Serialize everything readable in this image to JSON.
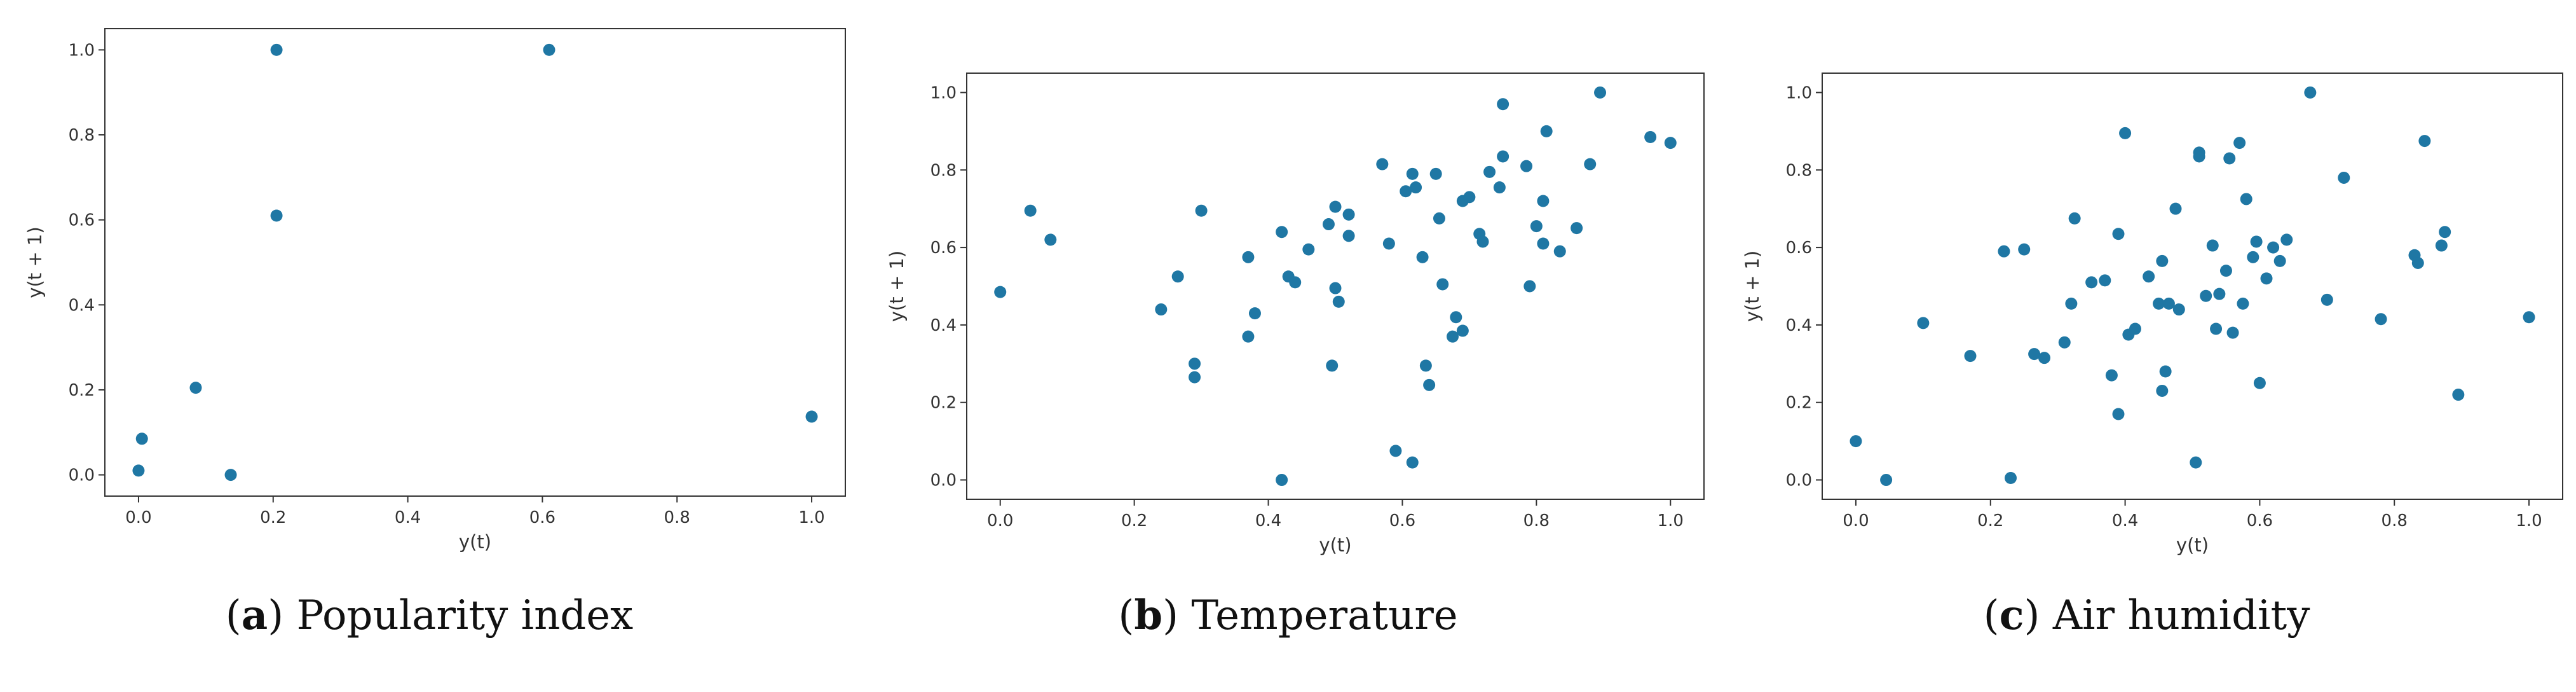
{
  "chart_data": [
    {
      "type": "scatter",
      "title": "",
      "xlabel": "y(t)",
      "ylabel": "y(t + 1)",
      "xlim": [
        -0.05,
        1.05
      ],
      "ylim": [
        -0.05,
        1.05
      ],
      "xticks": [
        "0.0",
        "0.2",
        "0.4",
        "0.6",
        "0.8",
        "1.0"
      ],
      "yticks": [
        "0.0",
        "0.2",
        "0.4",
        "0.6",
        "0.8",
        "1.0"
      ],
      "grid": false,
      "marker_color": "#1f77a4",
      "caption_letter": "a",
      "caption_text": "Popularity index",
      "points": [
        [
          0.0,
          0.01
        ],
        [
          0.005,
          0.085
        ],
        [
          0.085,
          0.205
        ],
        [
          0.137,
          0.0
        ],
        [
          0.205,
          1.0
        ],
        [
          0.205,
          0.61
        ],
        [
          0.61,
          1.0
        ],
        [
          1.0,
          0.137
        ]
      ]
    },
    {
      "type": "scatter",
      "title": "",
      "xlabel": "y(t)",
      "ylabel": "y(t + 1)",
      "xlim": [
        -0.05,
        1.05
      ],
      "ylim": [
        -0.05,
        1.05
      ],
      "xticks": [
        "0.0",
        "0.2",
        "0.4",
        "0.6",
        "0.8",
        "1.0"
      ],
      "yticks": [
        "0.0",
        "0.2",
        "0.4",
        "0.6",
        "0.8",
        "1.0"
      ],
      "grid": false,
      "marker_color": "#1f77a4",
      "caption_letter": "b",
      "caption_text": "Temperature",
      "points": [
        [
          0.0,
          0.485
        ],
        [
          0.045,
          0.695
        ],
        [
          0.075,
          0.62
        ],
        [
          0.24,
          0.44
        ],
        [
          0.265,
          0.525
        ],
        [
          0.29,
          0.265
        ],
        [
          0.29,
          0.3
        ],
        [
          0.3,
          0.695
        ],
        [
          0.37,
          0.37
        ],
        [
          0.37,
          0.575
        ],
        [
          0.38,
          0.43
        ],
        [
          0.42,
          0.0
        ],
        [
          0.42,
          0.64
        ],
        [
          0.43,
          0.525
        ],
        [
          0.44,
          0.51
        ],
        [
          0.46,
          0.595
        ],
        [
          0.49,
          0.66
        ],
        [
          0.495,
          0.295
        ],
        [
          0.5,
          0.495
        ],
        [
          0.5,
          0.705
        ],
        [
          0.505,
          0.46
        ],
        [
          0.52,
          0.685
        ],
        [
          0.52,
          0.63
        ],
        [
          0.57,
          0.815
        ],
        [
          0.58,
          0.61
        ],
        [
          0.59,
          0.075
        ],
        [
          0.605,
          0.745
        ],
        [
          0.615,
          0.79
        ],
        [
          0.615,
          0.045
        ],
        [
          0.62,
          0.755
        ],
        [
          0.63,
          0.575
        ],
        [
          0.635,
          0.295
        ],
        [
          0.64,
          0.245
        ],
        [
          0.65,
          0.79
        ],
        [
          0.655,
          0.675
        ],
        [
          0.66,
          0.505
        ],
        [
          0.675,
          0.37
        ],
        [
          0.68,
          0.42
        ],
        [
          0.69,
          0.72
        ],
        [
          0.69,
          0.385
        ],
        [
          0.7,
          0.73
        ],
        [
          0.715,
          0.635
        ],
        [
          0.72,
          0.615
        ],
        [
          0.73,
          0.795
        ],
        [
          0.745,
          0.755
        ],
        [
          0.75,
          0.97
        ],
        [
          0.75,
          0.835
        ],
        [
          0.785,
          0.81
        ],
        [
          0.79,
          0.5
        ],
        [
          0.8,
          0.655
        ],
        [
          0.81,
          0.72
        ],
        [
          0.81,
          0.61
        ],
        [
          0.815,
          0.9
        ],
        [
          0.835,
          0.59
        ],
        [
          0.86,
          0.65
        ],
        [
          0.88,
          0.815
        ],
        [
          0.895,
          1.0
        ],
        [
          0.97,
          0.885
        ],
        [
          1.0,
          0.87
        ]
      ]
    },
    {
      "type": "scatter",
      "title": "",
      "xlabel": "y(t)",
      "ylabel": "y(t + 1)",
      "xlim": [
        -0.05,
        1.05
      ],
      "ylim": [
        -0.05,
        1.05
      ],
      "xticks": [
        "0.0",
        "0.2",
        "0.4",
        "0.6",
        "0.8",
        "1.0"
      ],
      "yticks": [
        "0.0",
        "0.2",
        "0.4",
        "0.6",
        "0.8",
        "1.0"
      ],
      "grid": false,
      "marker_color": "#1f77a4",
      "caption_letter": "c",
      "caption_text": "Air humidity",
      "points": [
        [
          0.0,
          0.1
        ],
        [
          0.045,
          0.0
        ],
        [
          0.1,
          0.405
        ],
        [
          0.17,
          0.32
        ],
        [
          0.22,
          0.59
        ],
        [
          0.23,
          0.005
        ],
        [
          0.25,
          0.595
        ],
        [
          0.265,
          0.325
        ],
        [
          0.28,
          0.315
        ],
        [
          0.31,
          0.355
        ],
        [
          0.32,
          0.455
        ],
        [
          0.325,
          0.675
        ],
        [
          0.35,
          0.51
        ],
        [
          0.37,
          0.515
        ],
        [
          0.38,
          0.27
        ],
        [
          0.39,
          0.17
        ],
        [
          0.39,
          0.635
        ],
        [
          0.4,
          0.895
        ],
        [
          0.405,
          0.375
        ],
        [
          0.415,
          0.39
        ],
        [
          0.435,
          0.525
        ],
        [
          0.45,
          0.455
        ],
        [
          0.455,
          0.565
        ],
        [
          0.455,
          0.23
        ],
        [
          0.46,
          0.28
        ],
        [
          0.465,
          0.455
        ],
        [
          0.475,
          0.7
        ],
        [
          0.48,
          0.44
        ],
        [
          0.505,
          0.045
        ],
        [
          0.51,
          0.835
        ],
        [
          0.51,
          0.845
        ],
        [
          0.52,
          0.475
        ],
        [
          0.53,
          0.605
        ],
        [
          0.535,
          0.39
        ],
        [
          0.54,
          0.48
        ],
        [
          0.55,
          0.54
        ],
        [
          0.555,
          0.83
        ],
        [
          0.56,
          0.38
        ],
        [
          0.57,
          0.87
        ],
        [
          0.575,
          0.455
        ],
        [
          0.58,
          0.725
        ],
        [
          0.59,
          0.575
        ],
        [
          0.595,
          0.615
        ],
        [
          0.6,
          0.25
        ],
        [
          0.61,
          0.52
        ],
        [
          0.62,
          0.6
        ],
        [
          0.63,
          0.565
        ],
        [
          0.64,
          0.62
        ],
        [
          0.675,
          1.0
        ],
        [
          0.7,
          0.465
        ],
        [
          0.725,
          0.78
        ],
        [
          0.78,
          0.415
        ],
        [
          0.83,
          0.58
        ],
        [
          0.835,
          0.56
        ],
        [
          0.845,
          0.875
        ],
        [
          0.87,
          0.605
        ],
        [
          0.875,
          0.64
        ],
        [
          0.895,
          0.22
        ],
        [
          1.0,
          0.42
        ]
      ]
    }
  ]
}
